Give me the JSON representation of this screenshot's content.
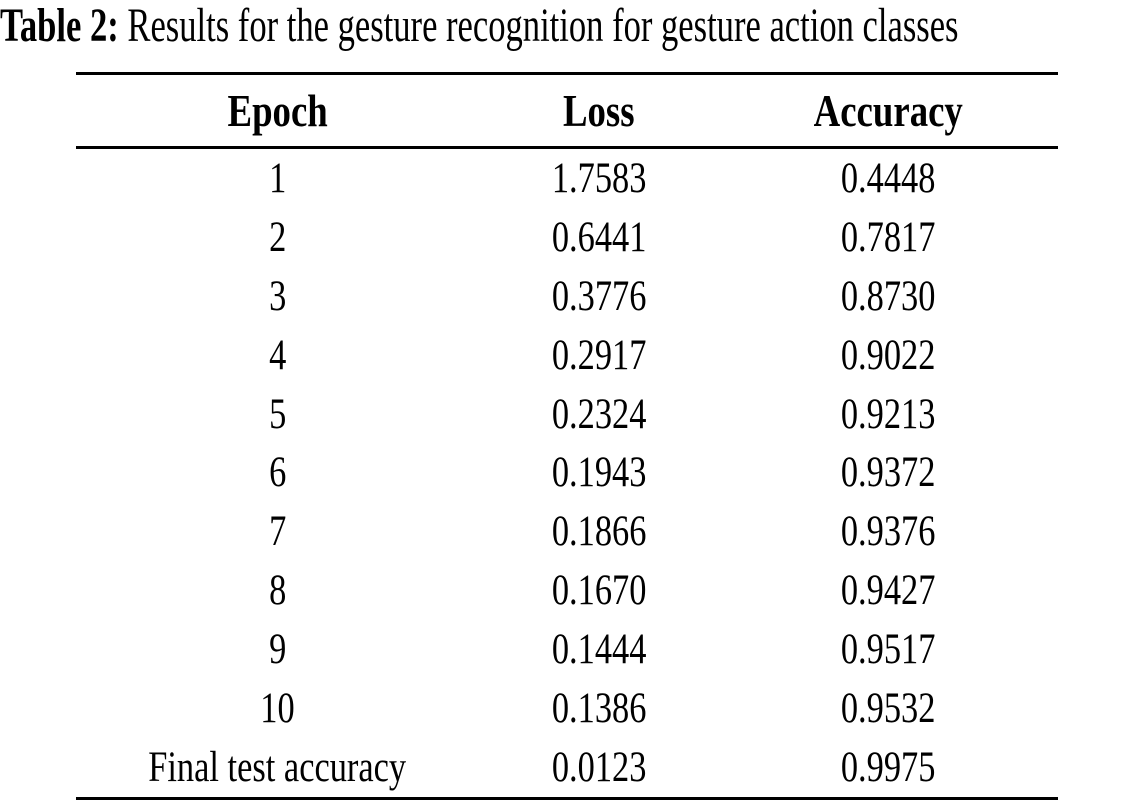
{
  "caption": {
    "label": "Table 2:",
    "text": " Results for the gesture recognition for gesture action classes"
  },
  "table": {
    "headers": {
      "epoch": "Epoch",
      "loss": "Loss",
      "accuracy": "Accuracy"
    },
    "rows": [
      {
        "epoch": "1",
        "loss": "1.7583",
        "accuracy": "0.4448"
      },
      {
        "epoch": "2",
        "loss": "0.6441",
        "accuracy": "0.7817"
      },
      {
        "epoch": "3",
        "loss": "0.3776",
        "accuracy": "0.8730"
      },
      {
        "epoch": "4",
        "loss": "0.2917",
        "accuracy": "0.9022"
      },
      {
        "epoch": "5",
        "loss": "0.2324",
        "accuracy": "0.9213"
      },
      {
        "epoch": "6",
        "loss": "0.1943",
        "accuracy": "0.9372"
      },
      {
        "epoch": "7",
        "loss": "0.1866",
        "accuracy": "0.9376"
      },
      {
        "epoch": "8",
        "loss": "0.1670",
        "accuracy": "0.9427"
      },
      {
        "epoch": "9",
        "loss": "0.1444",
        "accuracy": "0.9517"
      },
      {
        "epoch": "10",
        "loss": "0.1386",
        "accuracy": "0.9532"
      },
      {
        "epoch": "Final test accuracy",
        "loss": "0.0123",
        "accuracy": "0.9975"
      }
    ]
  },
  "chart_data": {
    "type": "table",
    "title": "Table 2: Results for the gesture recognition for gesture action classes",
    "columns": [
      "Epoch",
      "Loss",
      "Accuracy"
    ],
    "epochs": [
      1,
      2,
      3,
      4,
      5,
      6,
      7,
      8,
      9,
      10
    ],
    "loss": [
      1.7583,
      0.6441,
      0.3776,
      0.2917,
      0.2324,
      0.1943,
      0.1866,
      0.167,
      0.1444,
      0.1386
    ],
    "accuracy": [
      0.4448,
      0.7817,
      0.873,
      0.9022,
      0.9213,
      0.9372,
      0.9376,
      0.9427,
      0.9517,
      0.9532
    ],
    "final_test": {
      "label": "Final test accuracy",
      "loss": 0.0123,
      "accuracy": 0.9975
    }
  },
  "colors": {
    "background": "#ffffff",
    "text": "#000000",
    "rule": "#000000"
  }
}
